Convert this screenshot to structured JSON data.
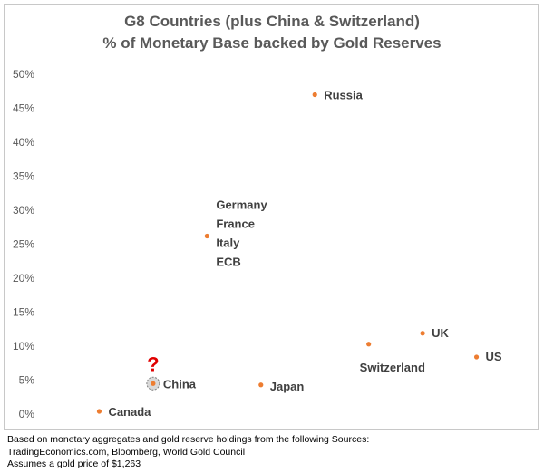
{
  "chart_data": {
    "type": "scatter",
    "title_lines": [
      "G8 Countries (plus China & Switzerland)",
      "% of Monetary Base backed by Gold Reserves"
    ],
    "xlabel": "",
    "ylabel": "",
    "ylim": [
      0,
      50
    ],
    "y_ticks": [
      "0%",
      "5%",
      "10%",
      "15%",
      "20%",
      "25%",
      "30%",
      "35%",
      "40%",
      "45%",
      "50%"
    ],
    "grid": false,
    "legend": "none",
    "point_color": "#ED7D31",
    "points": [
      {
        "label_lines": [
          "Canada"
        ],
        "x": 1,
        "y": 0.4
      },
      {
        "label_lines": [
          "China"
        ],
        "x": 2,
        "y": 4.5,
        "highlight": true,
        "annotation": "?"
      },
      {
        "label_lines": [
          "Germany",
          "France",
          "Italy",
          "ECB"
        ],
        "x": 3,
        "y": 26.2
      },
      {
        "label_lines": [
          "Japan"
        ],
        "x": 4,
        "y": 4.3
      },
      {
        "label_lines": [
          "Russia"
        ],
        "x": 5,
        "y": 47.0
      },
      {
        "label_lines": [
          "Switzerland"
        ],
        "x": 6,
        "y": 10.3
      },
      {
        "label_lines": [
          "UK"
        ],
        "x": 7,
        "y": 11.9
      },
      {
        "label_lines": [
          "US"
        ],
        "x": 8,
        "y": 8.4
      }
    ],
    "xlim": [
      0,
      9
    ]
  },
  "footnote": [
    "Based on monetary aggregates and gold reserve holdings from the following Sources:",
    "TradingEconomics.com, Bloomberg, World Gold Council",
    "Assumes a gold price of $1,263"
  ]
}
